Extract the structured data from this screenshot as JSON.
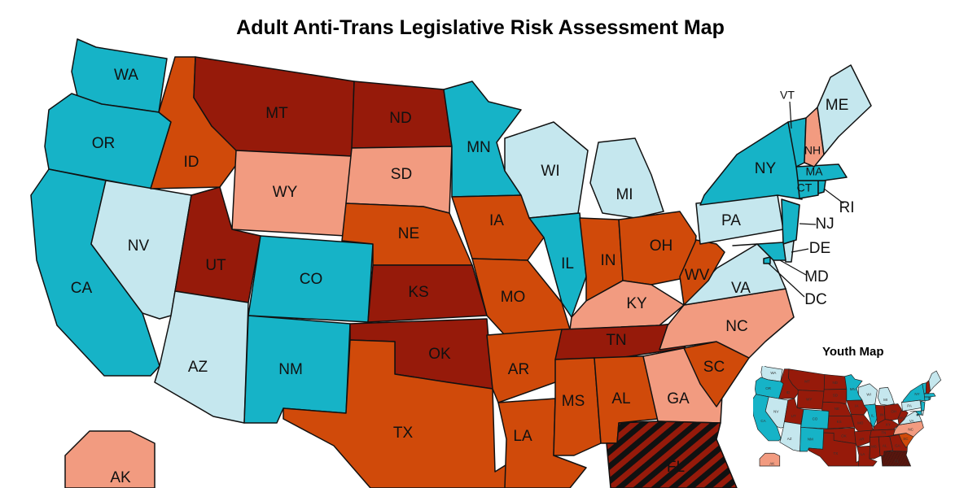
{
  "title": "Adult Anti-Trans Legislative Risk Assessment Map",
  "colors": {
    "low": "#c5e7ee",
    "lowest": "#16b3c7",
    "moderate": "#f29b80",
    "high": "#d04a0a",
    "highest": "#961a0a",
    "worst_stripe": "#961a0a",
    "worst_base": "#111111"
  },
  "states": [
    {
      "abbr": "WA",
      "risk": "lowest"
    },
    {
      "abbr": "OR",
      "risk": "lowest"
    },
    {
      "abbr": "CA",
      "risk": "lowest"
    },
    {
      "abbr": "NV",
      "risk": "low"
    },
    {
      "abbr": "ID",
      "risk": "high"
    },
    {
      "abbr": "MT",
      "risk": "highest"
    },
    {
      "abbr": "WY",
      "risk": "moderate"
    },
    {
      "abbr": "UT",
      "risk": "highest"
    },
    {
      "abbr": "AZ",
      "risk": "low"
    },
    {
      "abbr": "CO",
      "risk": "lowest"
    },
    {
      "abbr": "NM",
      "risk": "lowest"
    },
    {
      "abbr": "ND",
      "risk": "highest"
    },
    {
      "abbr": "SD",
      "risk": "moderate"
    },
    {
      "abbr": "NE",
      "risk": "high"
    },
    {
      "abbr": "KS",
      "risk": "highest"
    },
    {
      "abbr": "OK",
      "risk": "highest"
    },
    {
      "abbr": "TX",
      "risk": "high"
    },
    {
      "abbr": "MN",
      "risk": "lowest"
    },
    {
      "abbr": "IA",
      "risk": "high"
    },
    {
      "abbr": "MO",
      "risk": "high"
    },
    {
      "abbr": "AR",
      "risk": "high"
    },
    {
      "abbr": "LA",
      "risk": "high"
    },
    {
      "abbr": "WI",
      "risk": "low"
    },
    {
      "abbr": "IL",
      "risk": "lowest"
    },
    {
      "abbr": "MI",
      "risk": "low"
    },
    {
      "abbr": "IN",
      "risk": "high"
    },
    {
      "abbr": "OH",
      "risk": "high"
    },
    {
      "abbr": "KY",
      "risk": "moderate"
    },
    {
      "abbr": "TN",
      "risk": "highest"
    },
    {
      "abbr": "MS",
      "risk": "high"
    },
    {
      "abbr": "AL",
      "risk": "high"
    },
    {
      "abbr": "GA",
      "risk": "moderate"
    },
    {
      "abbr": "FL",
      "risk": "worst"
    },
    {
      "abbr": "SC",
      "risk": "high"
    },
    {
      "abbr": "NC",
      "risk": "moderate"
    },
    {
      "abbr": "VA",
      "risk": "low"
    },
    {
      "abbr": "WV",
      "risk": "high"
    },
    {
      "abbr": "PA",
      "risk": "low"
    },
    {
      "abbr": "NY",
      "risk": "lowest"
    },
    {
      "abbr": "NJ",
      "risk": "lowest"
    },
    {
      "abbr": "DE",
      "risk": "low"
    },
    {
      "abbr": "MD",
      "risk": "lowest"
    },
    {
      "abbr": "DC",
      "risk": "lowest"
    },
    {
      "abbr": "CT",
      "risk": "lowest"
    },
    {
      "abbr": "RI",
      "risk": "lowest"
    },
    {
      "abbr": "MA",
      "risk": "lowest"
    },
    {
      "abbr": "VT",
      "risk": "lowest"
    },
    {
      "abbr": "NH",
      "risk": "moderate"
    },
    {
      "abbr": "ME",
      "risk": "low"
    },
    {
      "abbr": "AK",
      "risk": "moderate"
    }
  ],
  "inset": {
    "title": "Youth Map"
  }
}
